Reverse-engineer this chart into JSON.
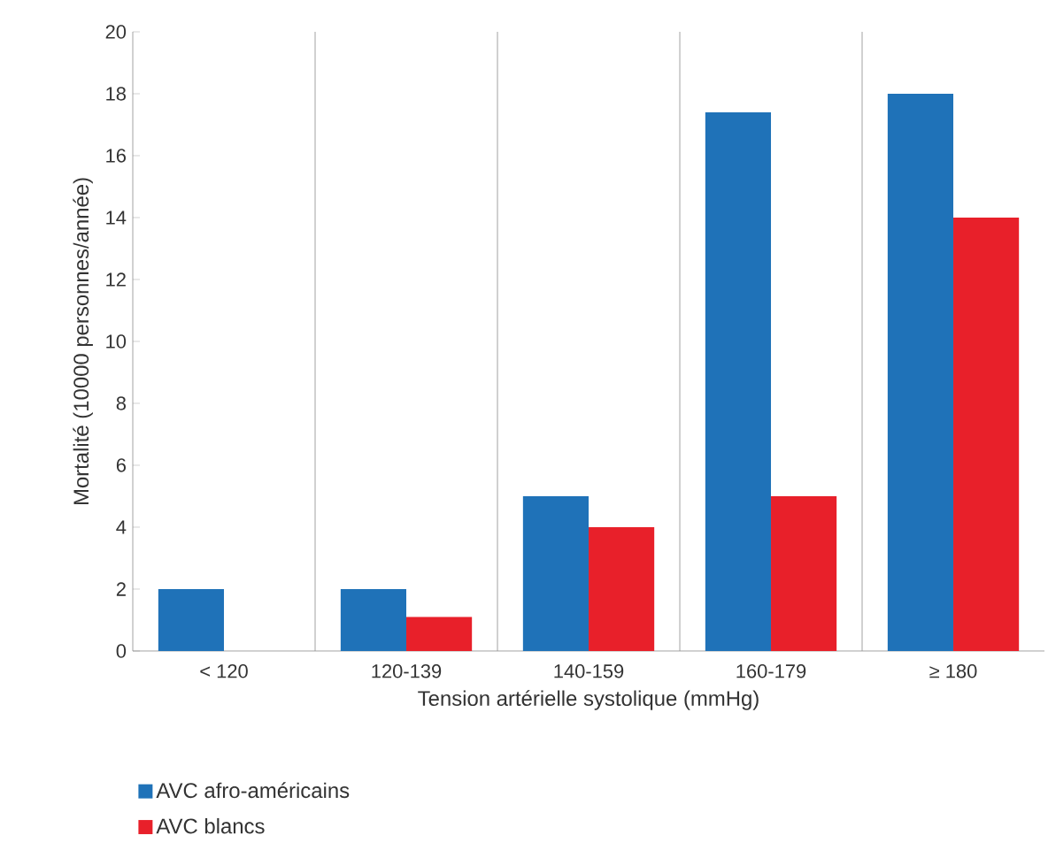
{
  "chart_data": {
    "type": "bar",
    "xlabel": "Tension artérielle systolique (mmHg)",
    "ylabel": "Mortalité (10000 personnes/année)",
    "categories": [
      "< 120",
      "120-139",
      "140-159",
      "160-179",
      "≥ 180"
    ],
    "series": [
      {
        "name": "AVC afro-américains",
        "color": "#1f72b8",
        "values": [
          2,
          2,
          5,
          17.4,
          18
        ]
      },
      {
        "name": "AVC blancs",
        "color": "#e8202a",
        "values": [
          null,
          1.1,
          4,
          5,
          14
        ]
      }
    ],
    "ylim": [
      0,
      20
    ],
    "yticks": [
      0,
      2,
      4,
      6,
      8,
      10,
      12,
      14,
      16,
      18,
      20
    ],
    "grid": "x",
    "legend": "bottom left"
  }
}
